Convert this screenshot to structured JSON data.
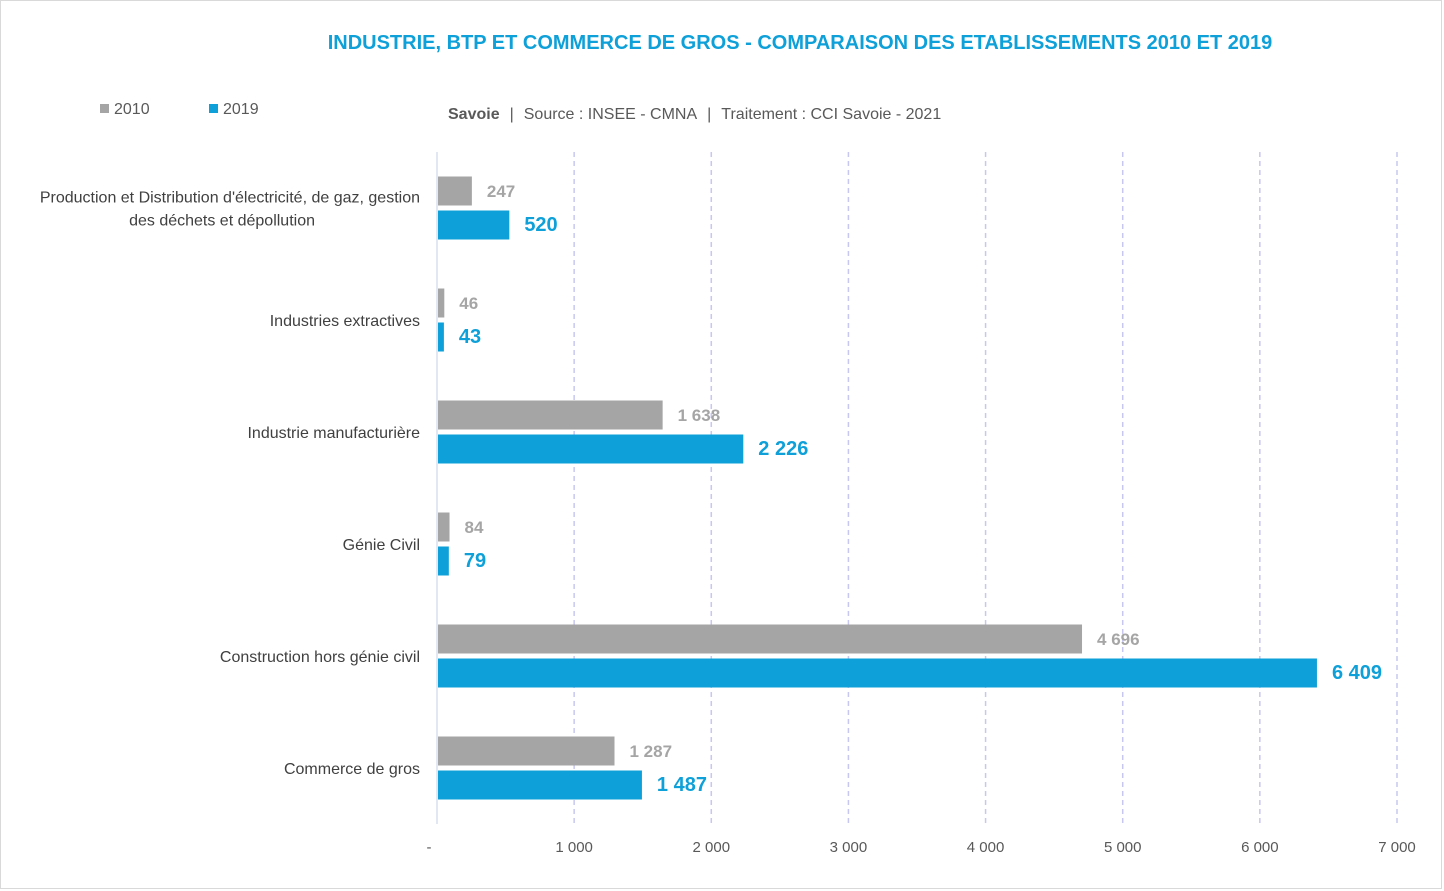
{
  "chart_data": {
    "type": "bar",
    "orientation": "horizontal",
    "title": "INDUSTRIE, BTP ET COMMERCE DE GROS - COMPARAISON DES ETABLISSEMENTS 2010 ET 2019",
    "subtitle": {
      "region": "Savoie",
      "separator": "|",
      "source": "Source : INSEE - CMNA",
      "treatment": "Traitement : CCI Savoie - 2021"
    },
    "categories": [
      [
        "Production et Distribution d'électricité, de gaz, gestion",
        "des déchets et dépollution"
      ],
      [
        "Industries extractives"
      ],
      [
        "Industrie manufacturière"
      ],
      [
        "Génie Civil"
      ],
      [
        "Construction hors génie civil"
      ],
      [
        "Commerce de gros"
      ]
    ],
    "series": [
      {
        "name": "2010",
        "color": "#a5a5a5",
        "values": [
          247,
          46,
          1638,
          84,
          4696,
          1287
        ],
        "labels": [
          "247",
          "46",
          "1 638",
          "84",
          "4 696",
          "1 287"
        ]
      },
      {
        "name": "2019",
        "color": "#0ea0d8",
        "values": [
          520,
          43,
          2226,
          79,
          6409,
          1487
        ],
        "labels": [
          "520",
          "43",
          "2 226",
          "79",
          "6 409",
          "1 487"
        ]
      }
    ],
    "xlim": [
      0,
      7000
    ],
    "xticks": [
      0,
      1000,
      2000,
      3000,
      4000,
      5000,
      6000,
      7000
    ],
    "xtick_labels": [
      "-",
      "1 000",
      "2 000",
      "3 000",
      "4 000",
      "5 000",
      "6 000",
      "7 000"
    ],
    "grid": "vertical dashed",
    "legend_position": "top-left"
  }
}
